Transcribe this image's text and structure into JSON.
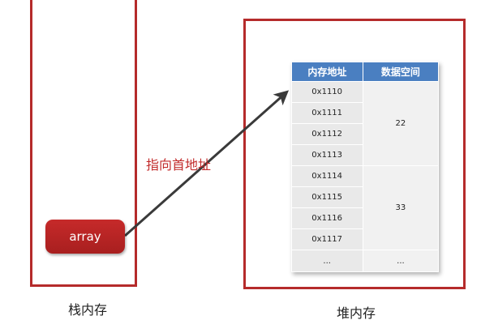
{
  "stack": {
    "caption": "栈内存",
    "variable": "array"
  },
  "heap": {
    "caption": "堆内存"
  },
  "pointer_label": "指向首地址",
  "table": {
    "headers": [
      "内存地址",
      "数据空间"
    ],
    "rows": [
      {
        "addr": "0x1110"
      },
      {
        "addr": "0x1111"
      },
      {
        "addr": "0x1112"
      },
      {
        "addr": "0x1113"
      },
      {
        "addr": "0x1114"
      },
      {
        "addr": "0x1115"
      },
      {
        "addr": "0x1116"
      },
      {
        "addr": "0x1117"
      },
      {
        "addr": "..."
      }
    ],
    "values": [
      "22",
      "33",
      "..."
    ]
  },
  "colors": {
    "border": "#b52b2b",
    "header": "#4a7fc1",
    "pill": "#b52424",
    "label": "#c22b2b"
  }
}
